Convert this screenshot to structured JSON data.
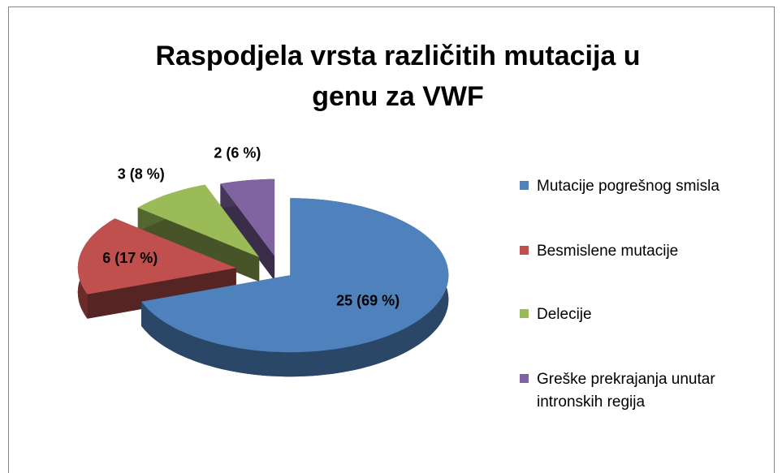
{
  "chart_data": {
    "type": "pie",
    "title": "Raspodjela vrsta različitih mutacija u genu za VWF",
    "categories": [
      "Mutacije pogrešnog smisla",
      "Besmislene mutacije",
      "Delecije",
      "Greške prekrajanja unutar intronskih regija"
    ],
    "values": [
      25,
      6,
      3,
      2
    ],
    "value_labels": [
      "25 (69 %)",
      "6 (17 %)",
      "3 (8 %)",
      "2 (6 %)"
    ],
    "colors": [
      "#4f81bd",
      "#c0504d",
      "#9bbb59",
      "#8064a2"
    ],
    "legend": "right"
  }
}
